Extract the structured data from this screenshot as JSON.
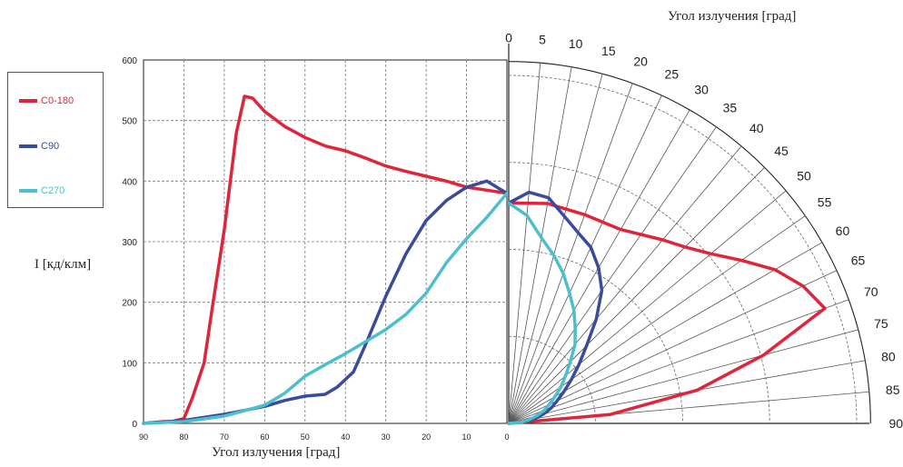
{
  "chart_data": {
    "type": "line",
    "title": "",
    "ylabel": "I   [кд/клм]",
    "xlabel": "Угол излучения    [град]",
    "polar_label": "Угол излучения    [град]",
    "ylim": [
      0,
      600
    ],
    "y_ticks": [
      "0",
      "100",
      "200",
      "300",
      "400",
      "500",
      "600"
    ],
    "x_ticks": [
      "90",
      "80",
      "70",
      "60",
      "50",
      "40",
      "30",
      "20",
      "10",
      "0"
    ],
    "polar_angle_ticks": [
      "0",
      "5",
      "10",
      "15",
      "20",
      "25",
      "30",
      "35",
      "40",
      "45",
      "50",
      "55",
      "60",
      "65",
      "70",
      "75",
      "80",
      "85",
      "90"
    ],
    "grid": true,
    "legend_position": "left",
    "series": [
      {
        "name": "C0-180",
        "color": "#e0243a",
        "x": [
          90,
          85,
          83,
          80,
          78,
          75,
          73,
          70,
          67,
          65,
          63,
          60,
          55,
          50,
          45,
          40,
          35,
          30,
          25,
          20,
          15,
          10,
          5,
          0
        ],
        "y": [
          0,
          3,
          3,
          8,
          40,
          100,
          190,
          320,
          480,
          540,
          537,
          515,
          490,
          472,
          458,
          450,
          438,
          425,
          416,
          408,
          400,
          390,
          385,
          380
        ]
      },
      {
        "name": "C90",
        "color": "#3a4a9c",
        "x": [
          90,
          80,
          70,
          60,
          55,
          50,
          45,
          42,
          38,
          35,
          30,
          25,
          20,
          15,
          10,
          5,
          0
        ],
        "y": [
          0,
          5,
          15,
          28,
          38,
          45,
          48,
          60,
          85,
          130,
          210,
          280,
          335,
          368,
          390,
          400,
          380
        ]
      },
      {
        "name": "C270",
        "color": "#4cbfcf",
        "x": [
          90,
          80,
          70,
          60,
          55,
          50,
          45,
          40,
          35,
          30,
          25,
          20,
          15,
          10,
          5,
          0
        ],
        "y": [
          0,
          3,
          12,
          30,
          50,
          78,
          97,
          115,
          135,
          155,
          180,
          215,
          265,
          305,
          340,
          380
        ]
      }
    ],
    "polar_series": [
      {
        "name": "C0-180",
        "color": "#e0243a",
        "angles": [
          0,
          10,
          20,
          30,
          40,
          45,
          50,
          55,
          60,
          65,
          70,
          75,
          80,
          85,
          90
        ],
        "values": [
          380,
          385,
          383,
          386,
          413,
          430,
          455,
          490,
          530,
          560,
          580,
          455,
          330,
          175,
          0
        ]
      },
      {
        "name": "C90",
        "color": "#3a4a9c",
        "angles": [
          0,
          5,
          10,
          15,
          20,
          25,
          30,
          35,
          40,
          45,
          50,
          55,
          60,
          65,
          70,
          75,
          80,
          85,
          90
        ],
        "values": [
          380,
          400,
          395,
          370,
          350,
          335,
          310,
          280,
          235,
          190,
          158,
          132,
          110,
          92,
          78,
          62,
          45,
          25,
          0
        ]
      },
      {
        "name": "C270",
        "color": "#4cbfcf",
        "angles": [
          0,
          5,
          10,
          15,
          20,
          25,
          30,
          35,
          40,
          45,
          50,
          55,
          60,
          65,
          70,
          75,
          80,
          85,
          90
        ],
        "values": [
          380,
          360,
          325,
          300,
          275,
          248,
          225,
          200,
          178,
          150,
          128,
          110,
          92,
          77,
          65,
          50,
          35,
          20,
          0
        ]
      }
    ]
  }
}
